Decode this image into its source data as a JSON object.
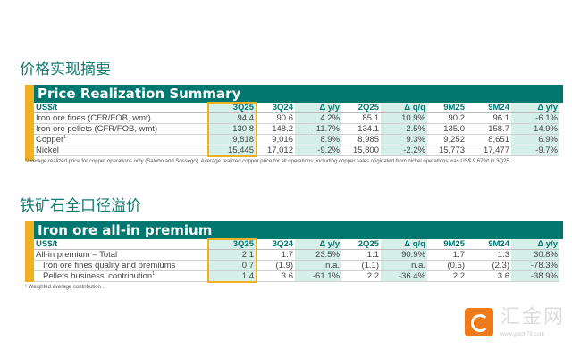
{
  "section1": {
    "cn_title": "价格实现摘要",
    "title": "Price Realization Summary",
    "headers": [
      "US$/t",
      "3Q25",
      "3Q24",
      "Δ y/y",
      "2Q25",
      "Δ q/q",
      "9M25",
      "9M24",
      "Δ y/y"
    ],
    "rows": [
      {
        "label": "Iron ore fines (CFR/FOB, wmt)",
        "values": [
          "94.4",
          "90.6",
          "4.2%",
          "85.1",
          "10.9%",
          "90.2",
          "96.1",
          "-6.1%"
        ]
      },
      {
        "label": "Iron ore pellets (CFR/FOB, wmt)",
        "values": [
          "130.8",
          "148.2",
          "-11.7%",
          "134.1",
          "-2.5%",
          "135.0",
          "158.7",
          "-14.9%"
        ]
      },
      {
        "label": "Copper",
        "sup": "1",
        "values": [
          "9,818",
          "9,016",
          "8.9%",
          "8,985",
          "9.3%",
          "9,252",
          "8,651",
          "6.9%"
        ]
      },
      {
        "label": "Nickel",
        "values": [
          "15,445",
          "17,012",
          "-9.2%",
          "15,800",
          "-2.2%",
          "15,773",
          "17,477",
          "-9.7%"
        ]
      }
    ],
    "footnote": "¹Average realized price for copper operations only (Salobo and Sossego). Average realized copper price for all operations, including copper sales originated from nickel operations was US$ 9,679/t in 3Q25."
  },
  "section2": {
    "cn_title": "铁矿石全口径溢价",
    "title": "Iron ore all-in premium",
    "headers": [
      "US$/t",
      "3Q25",
      "3Q24",
      "Δ y/y",
      "2Q25",
      "Δ q/q",
      "9M25",
      "9M24",
      "Δ y/y"
    ],
    "rows": [
      {
        "label": "All-in premium – Total",
        "values": [
          "2.1",
          "1.7",
          "23.5%",
          "1.1",
          "90.9%",
          "1.7",
          "1.3",
          "30.8%"
        ]
      },
      {
        "label": "Iron ore fines quality and premiums",
        "values": [
          "0.7",
          "(1.9)",
          "n.a.",
          "(1.1)",
          "n.a.",
          "(0.5)",
          "(2.3)",
          "-78.3%"
        ]
      },
      {
        "label": "Pellets business' contribution",
        "sup": "1",
        "values": [
          "1.4",
          "3.6",
          "-61.1%",
          "2.2",
          "-36.4%",
          "2.2",
          "3.6",
          "-38.9%"
        ]
      }
    ],
    "footnote": "¹ Weighted average contribution ."
  },
  "watermark": {
    "name": "汇金网",
    "url": "www.gold678.com"
  },
  "colors": {
    "teal": "#00786f",
    "accent": "#f0b023",
    "highlight": "#d6efe9"
  }
}
